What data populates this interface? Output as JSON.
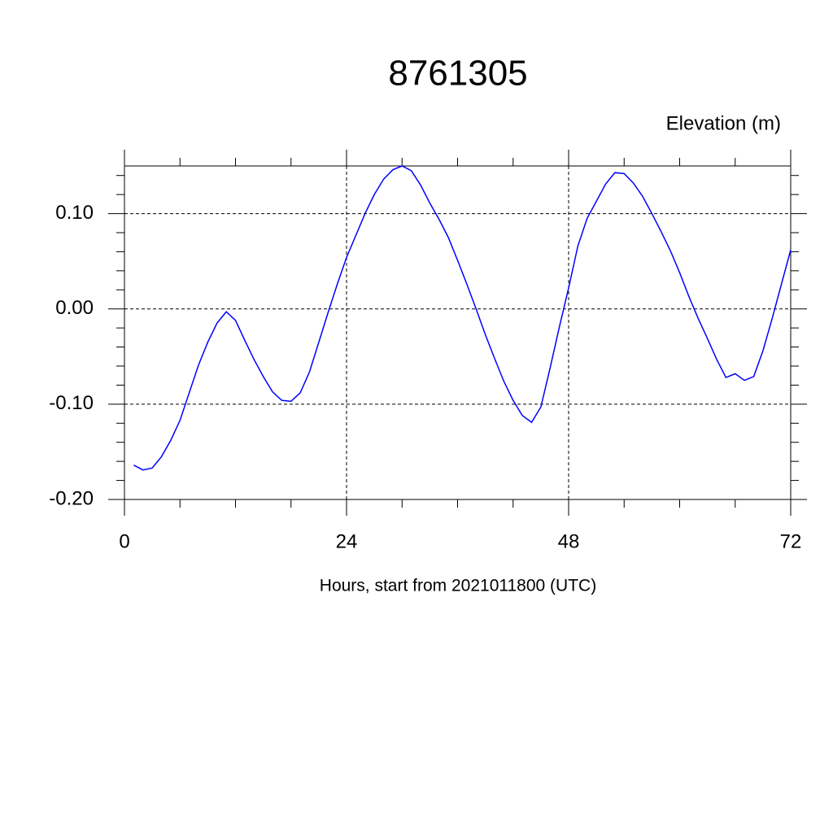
{
  "chart_data": {
    "type": "line",
    "title": "8761305",
    "ylabel": "Elevation (m)",
    "xlabel": "Hours, start from 2021011800 (UTC)",
    "x": [
      1,
      2,
      3,
      4,
      5,
      6,
      7,
      8,
      9,
      10,
      11,
      12,
      13,
      14,
      15,
      16,
      17,
      18,
      19,
      20,
      21,
      22,
      23,
      24,
      25,
      26,
      27,
      28,
      29,
      30,
      31,
      32,
      33,
      34,
      35,
      36,
      37,
      38,
      39,
      40,
      41,
      42,
      43,
      44,
      45,
      46,
      47,
      48,
      49,
      50,
      51,
      52,
      53,
      54,
      55,
      56,
      57,
      58,
      59,
      60,
      61,
      62,
      63,
      64,
      65,
      66,
      67,
      68,
      69,
      70,
      71,
      72
    ],
    "series": [
      {
        "name": "Elevation",
        "color": "#0000ff",
        "values": [
          -0.164,
          -0.169,
          -0.167,
          -0.155,
          -0.138,
          -0.117,
          -0.088,
          -0.059,
          -0.035,
          -0.015,
          -0.003,
          -0.012,
          -0.033,
          -0.053,
          -0.071,
          -0.087,
          -0.096,
          -0.097,
          -0.088,
          -0.066,
          -0.035,
          -0.004,
          0.026,
          0.054,
          0.077,
          0.1,
          0.12,
          0.136,
          0.146,
          0.15,
          0.145,
          0.13,
          0.111,
          0.094,
          0.075,
          0.051,
          0.026,
          0.0,
          -0.027,
          -0.052,
          -0.076,
          -0.096,
          -0.112,
          -0.119,
          -0.103,
          -0.062,
          -0.019,
          0.022,
          0.066,
          0.095,
          0.113,
          0.131,
          0.143,
          0.142,
          0.132,
          0.118,
          0.1,
          0.081,
          0.061,
          0.038,
          0.013,
          -0.01,
          -0.031,
          -0.053,
          -0.072,
          -0.068,
          -0.075,
          -0.071,
          -0.044,
          -0.01,
          0.026,
          0.062
        ]
      }
    ],
    "xlim": [
      0,
      72
    ],
    "ylim": [
      -0.2,
      0.15
    ],
    "xticks": [
      0,
      24,
      48,
      72
    ],
    "yticks": [
      {
        "value": -0.2,
        "label": "-0.20"
      },
      {
        "value": -0.1,
        "label": "-0.10"
      },
      {
        "value": 0,
        "label": "0.00"
      },
      {
        "value": 0.1,
        "label": "0.10"
      }
    ],
    "xticks_minor": [
      6,
      12,
      18,
      30,
      36,
      42,
      54,
      60,
      66
    ],
    "yticks_minor": [
      -0.18,
      -0.16,
      -0.14,
      -0.12,
      -0.08,
      -0.06,
      -0.04,
      -0.02,
      0.02,
      0.04,
      0.06,
      0.08,
      0.12,
      0.14
    ],
    "grid": true
  }
}
